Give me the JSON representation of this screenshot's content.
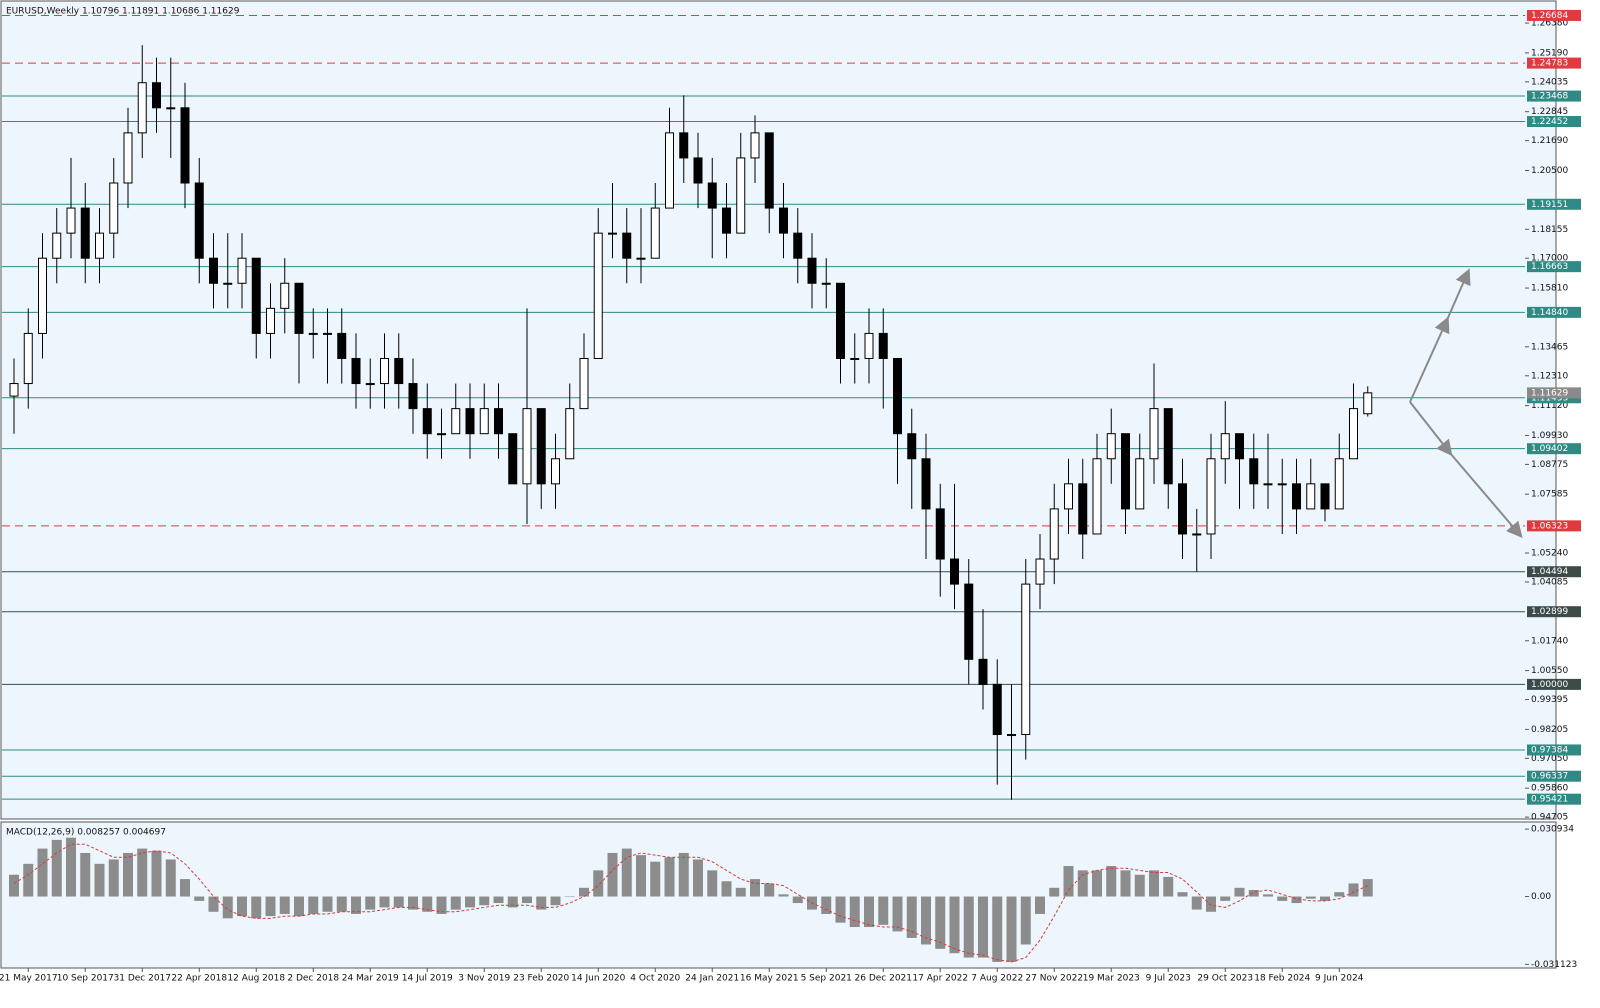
{
  "chart_data": [
    {
      "type": "candlestick",
      "title": "EURUSD,Weekly  1.10796 1.11891 1.10686 1.11629",
      "x": [
        null,
        "21 May 2017",
        null,
        null,
        null,
        "10 Sep 2017",
        null,
        null,
        null,
        "31 Dec 2017",
        null,
        null,
        null,
        "22 Apr 2018",
        null,
        null,
        null,
        "12 Aug 2018",
        null,
        null,
        null,
        "2 Dec 2018",
        null,
        null,
        null,
        "24 Mar 2019",
        null,
        null,
        null,
        "14 Jul 2019",
        null,
        null,
        null,
        "3 Nov 2019",
        null,
        null,
        null,
        "23 Feb 2020",
        null,
        null,
        null,
        "14 Jun 2020",
        null,
        null,
        null,
        "4 Oct 2020",
        null,
        null,
        null,
        "24 Jan 2021",
        null,
        null,
        null,
        "16 May 2021",
        null,
        null,
        null,
        "5 Sep 2021",
        null,
        null,
        null,
        "26 Dec 2021",
        null,
        null,
        null,
        "17 Apr 2022",
        null,
        null,
        null,
        "7 Aug 2022",
        null,
        null,
        null,
        "27 Nov 2022",
        null,
        null,
        null,
        "19 Mar 2023",
        null,
        null,
        null,
        "9 Jul 2023",
        null,
        null,
        null,
        "29 Oct 2023",
        null,
        null,
        null,
        "18 Feb 2024",
        null,
        null,
        null,
        "9 Jun 2024",
        null,
        null
      ],
      "ohlc": [
        [
          1.115,
          1.13,
          1.1,
          1.12
        ],
        [
          1.12,
          1.15,
          1.11,
          1.14
        ],
        [
          1.14,
          1.18,
          1.13,
          1.17
        ],
        [
          1.17,
          1.19,
          1.16,
          1.18
        ],
        [
          1.18,
          1.21,
          1.17,
          1.19
        ],
        [
          1.19,
          1.2,
          1.16,
          1.17
        ],
        [
          1.17,
          1.19,
          1.16,
          1.18
        ],
        [
          1.18,
          1.21,
          1.17,
          1.2
        ],
        [
          1.2,
          1.23,
          1.19,
          1.22
        ],
        [
          1.22,
          1.255,
          1.21,
          1.24
        ],
        [
          1.24,
          1.25,
          1.22,
          1.23
        ],
        [
          1.23,
          1.25,
          1.21,
          1.23
        ],
        [
          1.23,
          1.24,
          1.19,
          1.2
        ],
        [
          1.2,
          1.21,
          1.16,
          1.17
        ],
        [
          1.17,
          1.18,
          1.15,
          1.16
        ],
        [
          1.16,
          1.18,
          1.15,
          1.16
        ],
        [
          1.16,
          1.18,
          1.15,
          1.17
        ],
        [
          1.17,
          1.17,
          1.13,
          1.14
        ],
        [
          1.14,
          1.16,
          1.13,
          1.15
        ],
        [
          1.15,
          1.17,
          1.14,
          1.16
        ],
        [
          1.16,
          1.16,
          1.12,
          1.14
        ],
        [
          1.14,
          1.15,
          1.13,
          1.14
        ],
        [
          1.14,
          1.15,
          1.12,
          1.14
        ],
        [
          1.14,
          1.15,
          1.12,
          1.13
        ],
        [
          1.13,
          1.14,
          1.11,
          1.12
        ],
        [
          1.12,
          1.13,
          1.11,
          1.12
        ],
        [
          1.12,
          1.14,
          1.11,
          1.13
        ],
        [
          1.13,
          1.14,
          1.11,
          1.12
        ],
        [
          1.12,
          1.13,
          1.1,
          1.11
        ],
        [
          1.11,
          1.12,
          1.09,
          1.1
        ],
        [
          1.1,
          1.11,
          1.09,
          1.1
        ],
        [
          1.1,
          1.12,
          1.1,
          1.11
        ],
        [
          1.11,
          1.12,
          1.09,
          1.1
        ],
        [
          1.1,
          1.12,
          1.1,
          1.11
        ],
        [
          1.11,
          1.12,
          1.09,
          1.1
        ],
        [
          1.1,
          1.1,
          1.08,
          1.08
        ],
        [
          1.08,
          1.15,
          1.064,
          1.11
        ],
        [
          1.11,
          1.11,
          1.07,
          1.08
        ],
        [
          1.08,
          1.1,
          1.07,
          1.09
        ],
        [
          1.09,
          1.12,
          1.09,
          1.11
        ],
        [
          1.11,
          1.14,
          1.11,
          1.13
        ],
        [
          1.13,
          1.19,
          1.13,
          1.18
        ],
        [
          1.18,
          1.2,
          1.17,
          1.18
        ],
        [
          1.18,
          1.19,
          1.16,
          1.17
        ],
        [
          1.17,
          1.19,
          1.16,
          1.17
        ],
        [
          1.17,
          1.2,
          1.17,
          1.19
        ],
        [
          1.19,
          1.23,
          1.19,
          1.22
        ],
        [
          1.22,
          1.235,
          1.2,
          1.21
        ],
        [
          1.21,
          1.22,
          1.19,
          1.2
        ],
        [
          1.2,
          1.21,
          1.17,
          1.19
        ],
        [
          1.19,
          1.2,
          1.17,
          1.18
        ],
        [
          1.18,
          1.22,
          1.18,
          1.21
        ],
        [
          1.21,
          1.227,
          1.2,
          1.22
        ],
        [
          1.22,
          1.22,
          1.18,
          1.19
        ],
        [
          1.19,
          1.2,
          1.17,
          1.18
        ],
        [
          1.18,
          1.19,
          1.16,
          1.17
        ],
        [
          1.17,
          1.18,
          1.15,
          1.16
        ],
        [
          1.16,
          1.17,
          1.15,
          1.16
        ],
        [
          1.16,
          1.16,
          1.12,
          1.13
        ],
        [
          1.13,
          1.14,
          1.12,
          1.13
        ],
        [
          1.13,
          1.15,
          1.12,
          1.14
        ],
        [
          1.14,
          1.15,
          1.11,
          1.13
        ],
        [
          1.13,
          1.13,
          1.08,
          1.1
        ],
        [
          1.1,
          1.11,
          1.07,
          1.09
        ],
        [
          1.09,
          1.1,
          1.05,
          1.07
        ],
        [
          1.07,
          1.08,
          1.035,
          1.05
        ],
        [
          1.05,
          1.08,
          1.03,
          1.04
        ],
        [
          1.04,
          1.05,
          1.0,
          1.01
        ],
        [
          1.01,
          1.03,
          0.99,
          1.0
        ],
        [
          1.0,
          1.01,
          0.96,
          0.98
        ],
        [
          0.98,
          1.0,
          0.954,
          0.98
        ],
        [
          0.98,
          1.05,
          0.97,
          1.04
        ],
        [
          1.04,
          1.06,
          1.03,
          1.05
        ],
        [
          1.05,
          1.08,
          1.04,
          1.07
        ],
        [
          1.07,
          1.09,
          1.06,
          1.08
        ],
        [
          1.08,
          1.09,
          1.05,
          1.06
        ],
        [
          1.06,
          1.1,
          1.06,
          1.09
        ],
        [
          1.09,
          1.11,
          1.08,
          1.1
        ],
        [
          1.1,
          1.1,
          1.06,
          1.07
        ],
        [
          1.07,
          1.1,
          1.07,
          1.09
        ],
        [
          1.09,
          1.128,
          1.08,
          1.11
        ],
        [
          1.11,
          1.11,
          1.07,
          1.08
        ],
        [
          1.08,
          1.09,
          1.05,
          1.06
        ],
        [
          1.06,
          1.07,
          1.045,
          1.06
        ],
        [
          1.06,
          1.1,
          1.05,
          1.09
        ],
        [
          1.09,
          1.113,
          1.08,
          1.1
        ],
        [
          1.1,
          1.1,
          1.07,
          1.09
        ],
        [
          1.09,
          1.1,
          1.07,
          1.08
        ],
        [
          1.08,
          1.1,
          1.07,
          1.08
        ],
        [
          1.08,
          1.09,
          1.06,
          1.08
        ],
        [
          1.08,
          1.09,
          1.06,
          1.07
        ],
        [
          1.07,
          1.09,
          1.07,
          1.08
        ],
        [
          1.08,
          1.08,
          1.065,
          1.07
        ],
        [
          1.07,
          1.1,
          1.07,
          1.09
        ],
        [
          1.09,
          1.12,
          1.09,
          1.11
        ],
        [
          1.10796,
          1.11891,
          1.10686,
          1.11629
        ]
      ],
      "ylim": [
        0.9463,
        1.2726
      ],
      "yticks": [
        {
          "value": 1.2638,
          "label": "1.26380"
        },
        {
          "value": 1.2519,
          "label": "1.25190"
        },
        {
          "value": 1.24035,
          "label": "1.24035"
        },
        {
          "value": 1.22845,
          "label": "1.22845"
        },
        {
          "value": 1.2169,
          "label": "1.21690"
        },
        {
          "value": 1.205,
          "label": "1.20500"
        },
        {
          "value": 1.18155,
          "label": "1.18155"
        },
        {
          "value": 1.17,
          "label": "1.17000"
        },
        {
          "value": 1.1581,
          "label": "1.15810"
        },
        {
          "value": 1.13465,
          "label": "1.13465"
        },
        {
          "value": 1.1231,
          "label": "1.12310"
        },
        {
          "value": 1.1112,
          "label": "1.11120"
        },
        {
          "value": 1.0993,
          "label": "1.09930"
        },
        {
          "value": 1.08775,
          "label": "1.08775"
        },
        {
          "value": 1.07585,
          "label": "1.07585"
        },
        {
          "value": 1.0524,
          "label": "1.05240"
        },
        {
          "value": 1.04085,
          "label": "1.04085"
        },
        {
          "value": 1.0174,
          "label": "1.01740"
        },
        {
          "value": 1.0055,
          "label": "1.00550"
        },
        {
          "value": 0.99395,
          "label": "0.99395"
        },
        {
          "value": 0.98205,
          "label": "0.98205"
        },
        {
          "value": 0.9705,
          "label": "0.97050"
        },
        {
          "value": 0.9586,
          "label": "0.95860"
        },
        {
          "value": 0.94705,
          "label": "0.94705"
        }
      ],
      "levels": [
        {
          "value": 1.26684,
          "label": "1.26684",
          "style": "dashed",
          "color": "#e0393e"
        },
        {
          "value": 1.24783,
          "label": "1.24783",
          "style": "dashed",
          "color": "#e0393e"
        },
        {
          "value": 1.23468,
          "label": "1.23468",
          "style": "solid",
          "color": "#2f8a84"
        },
        {
          "value": 1.22452,
          "label": "1.22452",
          "style": "solid",
          "color": "#2f8a84"
        },
        {
          "value": 1.19151,
          "label": "1.19151",
          "style": "solid",
          "color": "#2f8a84"
        },
        {
          "value": 1.16663,
          "label": "1.16663",
          "style": "solid",
          "color": "#2f8a84"
        },
        {
          "value": 1.1484,
          "label": "1.14840",
          "style": "solid",
          "color": "#2f8a84"
        },
        {
          "value": 1.11433,
          "label": "1.11433",
          "style": "solid",
          "color": "#2f8a84"
        },
        {
          "value": 1.09402,
          "label": "1.09402",
          "style": "solid",
          "color": "#2f8a84"
        },
        {
          "value": 1.06323,
          "label": "1.06323",
          "style": "dashed",
          "color": "#e0393e"
        },
        {
          "value": 1.04494,
          "label": "1.04494",
          "style": "solid",
          "color": "#3c4a4a"
        },
        {
          "value": 1.02899,
          "label": "1.02899",
          "style": "solid",
          "color": "#3c4a4a"
        },
        {
          "value": 1.0,
          "label": "1.00000",
          "style": "solid",
          "color": "#3c4a4a"
        },
        {
          "value": 0.97384,
          "label": "0.97384",
          "style": "solid",
          "color": "#2f8a84"
        },
        {
          "value": 0.96337,
          "label": "0.96337",
          "style": "solid",
          "color": "#2f8a84"
        },
        {
          "value": 0.95421,
          "label": "0.95421",
          "style": "solid",
          "color": "#2f8a84"
        }
      ],
      "last_price": {
        "value": 1.11629,
        "label": "1.11629",
        "color": "#8a8a8a"
      }
    },
    {
      "type": "macd",
      "title": "MACD(12,26,9) 0.008257 0.004697",
      "color": "#8c8c8c",
      "signal_color": "#d83a3a",
      "values": [
        0.01,
        0.015,
        0.022,
        0.026,
        0.027,
        0.02,
        0.015,
        0.017,
        0.02,
        0.022,
        0.021,
        0.017,
        0.008,
        -0.002,
        -0.007,
        -0.01,
        -0.009,
        -0.01,
        -0.009,
        -0.008,
        -0.009,
        -0.008,
        -0.007,
        -0.007,
        -0.008,
        -0.006,
        -0.005,
        -0.005,
        -0.006,
        -0.007,
        -0.008,
        -0.006,
        -0.005,
        -0.004,
        -0.003,
        -0.005,
        -0.003,
        -0.006,
        -0.004,
        0.0,
        0.004,
        0.012,
        0.02,
        0.022,
        0.019,
        0.016,
        0.018,
        0.02,
        0.017,
        0.012,
        0.007,
        0.004,
        0.008,
        0.006,
        0.001,
        -0.003,
        -0.006,
        -0.008,
        -0.012,
        -0.014,
        -0.014,
        -0.013,
        -0.016,
        -0.019,
        -0.022,
        -0.024,
        -0.026,
        -0.028,
        -0.028,
        -0.03,
        -0.03,
        -0.022,
        -0.008,
        0.004,
        0.014,
        0.012,
        0.012,
        0.014,
        0.012,
        0.01,
        0.012,
        0.009,
        0.002,
        -0.006,
        -0.007,
        -0.002,
        0.004,
        0.003,
        0.001,
        -0.002,
        -0.003,
        -0.001,
        -0.002,
        0.002,
        0.006,
        0.008
      ],
      "signal": [
        0.006,
        0.01,
        0.015,
        0.02,
        0.024,
        0.024,
        0.021,
        0.018,
        0.018,
        0.02,
        0.021,
        0.02,
        0.015,
        0.008,
        0.0,
        -0.006,
        -0.009,
        -0.01,
        -0.01,
        -0.009,
        -0.009,
        -0.008,
        -0.008,
        -0.007,
        -0.007,
        -0.007,
        -0.006,
        -0.005,
        -0.005,
        -0.006,
        -0.007,
        -0.007,
        -0.006,
        -0.005,
        -0.004,
        -0.004,
        -0.004,
        -0.005,
        -0.005,
        -0.003,
        0.0,
        0.005,
        0.012,
        0.018,
        0.02,
        0.019,
        0.018,
        0.018,
        0.018,
        0.016,
        0.012,
        0.008,
        0.006,
        0.006,
        0.005,
        0.001,
        -0.003,
        -0.006,
        -0.009,
        -0.011,
        -0.013,
        -0.014,
        -0.014,
        -0.016,
        -0.019,
        -0.021,
        -0.024,
        -0.026,
        -0.027,
        -0.029,
        -0.03,
        -0.028,
        -0.02,
        -0.009,
        0.003,
        0.01,
        0.012,
        0.013,
        0.013,
        0.012,
        0.011,
        0.011,
        0.008,
        0.002,
        -0.004,
        -0.005,
        -0.002,
        0.002,
        0.003,
        0.001,
        -0.001,
        -0.002,
        -0.002,
        -0.001,
        0.002,
        0.005
      ],
      "ylim": [
        -0.0328,
        0.0342
      ],
      "yticks": [
        {
          "value": 0.030934,
          "label": "0.030934"
        },
        {
          "value": 0,
          "label": "0.00"
        },
        {
          "value": -0.031123,
          "label": "-0.031123"
        }
      ]
    }
  ]
}
